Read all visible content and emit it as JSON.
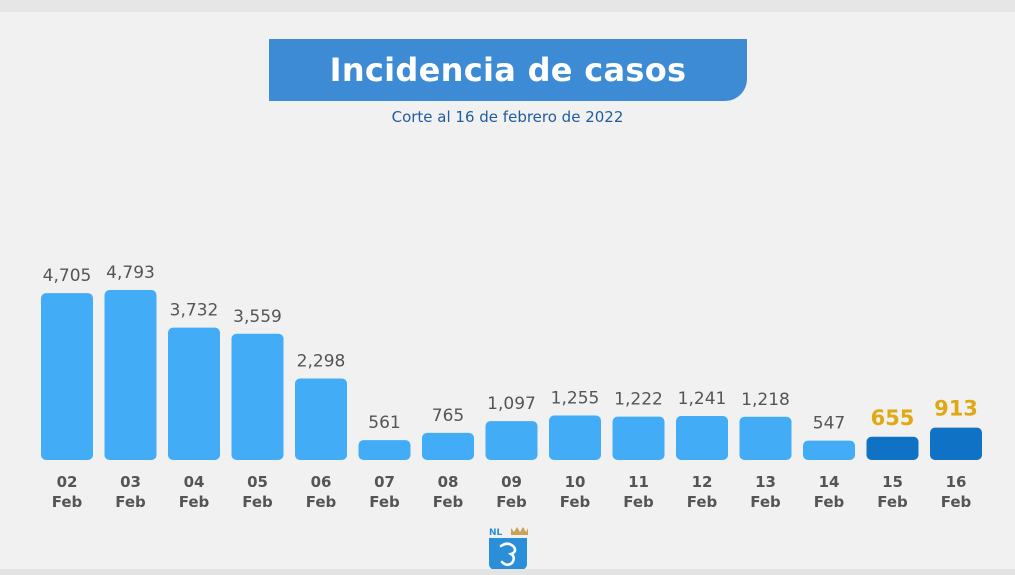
{
  "header": {
    "title": "Incidencia de casos",
    "subtitle": "Corte al 16 de febrero de 2022"
  },
  "logo": {
    "text": "NL",
    "icon": "crown-shield-logo-icon"
  },
  "colors": {
    "bar": "#42acf7",
    "bar_highlight": "#0f72c4",
    "label": "#555555",
    "label_highlight": "#e0a813",
    "axis_label": "#555555",
    "title_bg": "#3d8bd4"
  },
  "chart_data": {
    "type": "bar",
    "title": "Incidencia de casos",
    "subtitle": "Corte al 16 de febrero de 2022",
    "categories": [
      "02 Feb",
      "03 Feb",
      "04 Feb",
      "05 Feb",
      "06 Feb",
      "07 Feb",
      "08 Feb",
      "09 Feb",
      "10 Feb",
      "11 Feb",
      "12 Feb",
      "13 Feb",
      "14 Feb",
      "15 Feb",
      "16 Feb"
    ],
    "category_day": [
      "02",
      "03",
      "04",
      "05",
      "06",
      "07",
      "08",
      "09",
      "10",
      "11",
      "12",
      "13",
      "14",
      "15",
      "16"
    ],
    "category_month": "Feb",
    "values": [
      4705,
      4793,
      3732,
      3559,
      2298,
      561,
      765,
      1097,
      1255,
      1222,
      1241,
      1218,
      547,
      655,
      913
    ],
    "value_labels": [
      "4,705",
      "4,793",
      "3,732",
      "3,559",
      "2,298",
      "561",
      "765",
      "1,097",
      "1,255",
      "1,222",
      "1,241",
      "1,218",
      "547",
      "655",
      "913"
    ],
    "highlighted": [
      false,
      false,
      false,
      false,
      false,
      false,
      false,
      false,
      false,
      false,
      false,
      false,
      false,
      true,
      true
    ],
    "xlabel": "",
    "ylabel": "",
    "ylim": [
      0,
      5000
    ],
    "grid": false,
    "legend": "none"
  }
}
